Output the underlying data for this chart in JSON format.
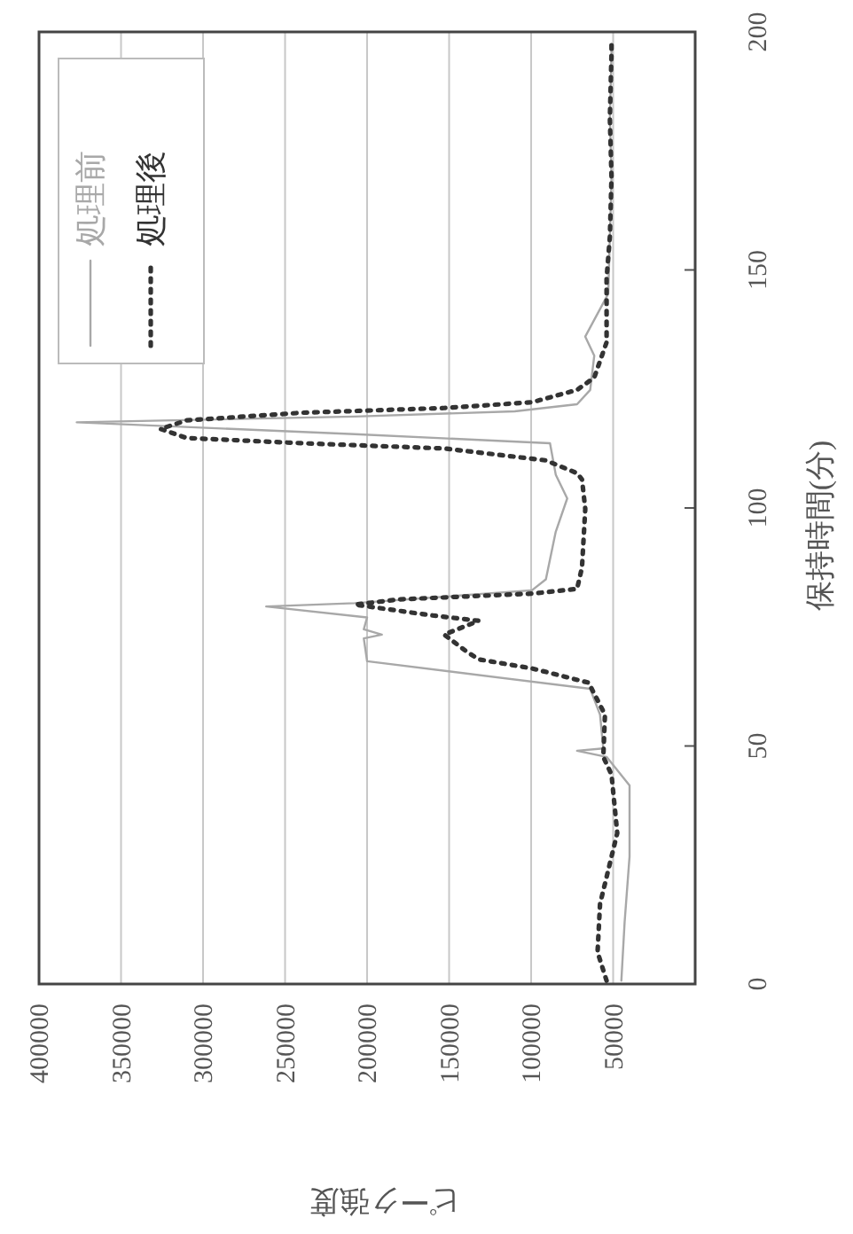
{
  "chart_data": {
    "type": "line",
    "xlabel": "ピーク強度",
    "ylabel": "保持時間(分)",
    "xlim": [
      400000,
      0
    ],
    "xticks": [
      400000,
      350000,
      300000,
      250000,
      200000,
      150000,
      100000,
      50000
    ],
    "ylim": [
      0,
      200
    ],
    "yticks": [
      0,
      50,
      100,
      150,
      200
    ],
    "grid": "x",
    "legend": "top left",
    "series": [
      {
        "name": "処理前",
        "color": "#a8a8a8",
        "line_style": "solid",
        "values": [
          0.7,
          13,
          26.8,
          41.7,
          47.7,
          49,
          49.5,
          56.6,
          62,
          67.8,
          72.6,
          73.4,
          74.5,
          77,
          79.3,
          80,
          82.7,
          85,
          95,
          102,
          107,
          113.6,
          115.5,
          118,
          119.2,
          120.3,
          121.8,
          124.8,
          132,
          136,
          145,
          157,
          169.5,
          181.8,
          195.5,
          197.4
        ],
        "x": [
          45000,
          43000,
          40000,
          40000,
          54000,
          72000,
          56000,
          58000,
          64000,
          200000,
          202000,
          191000,
          202000,
          200000,
          261500,
          207500,
          99500,
          91000,
          85000,
          78000,
          85000,
          88500,
          207500,
          377000,
          207500,
          110000,
          72000,
          64000,
          61500,
          67000,
          53000,
          52000,
          51000,
          52000,
          51000,
          51000
        ]
      },
      {
        "name": "処理後",
        "color": "#333333",
        "line_style": "dotted",
        "values": [
          0.7,
          6.7,
          16.8,
          31.7,
          44,
          47.7,
          56.6,
          63.3,
          66.3,
          68.2,
          70,
          73.4,
          76.3,
          77.5,
          79.7,
          80.8,
          82,
          83,
          87.5,
          99.8,
          106,
          107.3,
          110,
          112.5,
          113.6,
          114.7,
          116.6,
          118.4,
          120,
          121,
          122.2,
          124.8,
          127.4,
          134.8,
          148.2,
          157,
          169.5,
          181.8,
          195.5,
          197.4
        ],
        "x": [
          54000,
          59500,
          58000,
          47500,
          51000,
          56000,
          55000,
          65000,
          99500,
          132000,
          140000,
          153000,
          132000,
          162000,
          207500,
          180500,
          99500,
          72000,
          69000,
          67000,
          69000,
          72000,
          91000,
          153000,
          240000,
          310000,
          326000,
          310000,
          240000,
          153000,
          99500,
          72000,
          61500,
          54000,
          54000,
          52000,
          51000,
          52000,
          51000,
          51000
        ]
      }
    ]
  }
}
